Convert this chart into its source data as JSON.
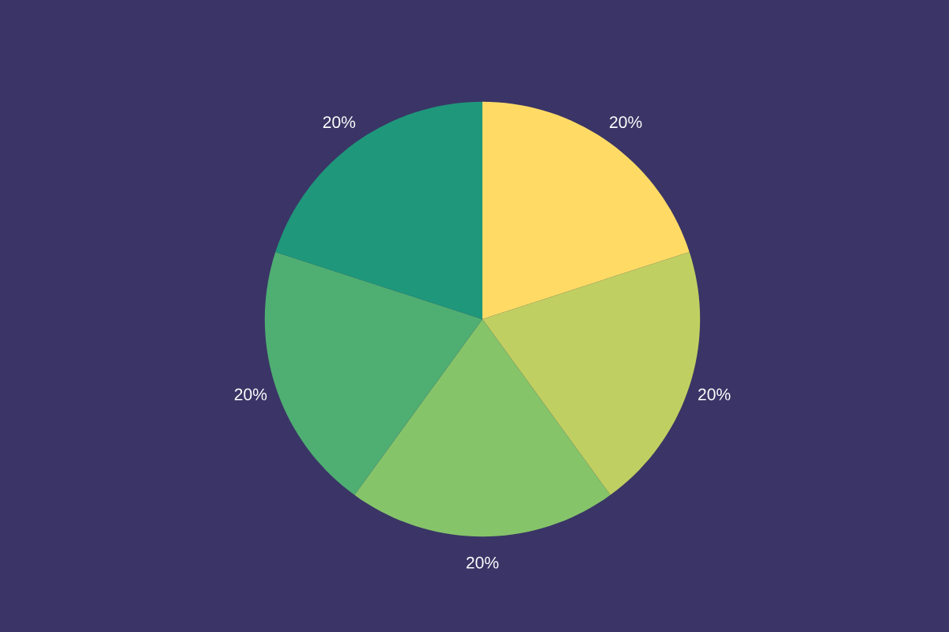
{
  "chart_data": {
    "type": "pie",
    "categories": [
      null,
      null,
      null,
      null,
      null
    ],
    "values": [
      20,
      20,
      20,
      20,
      20
    ],
    "colors": [
      "#ffdb66",
      "#c0cf61",
      "#86c46a",
      "#4fae72",
      "#1f977b"
    ],
    "value_labels": [
      "20%",
      "20%",
      "20%",
      "20%",
      "20%"
    ]
  }
}
